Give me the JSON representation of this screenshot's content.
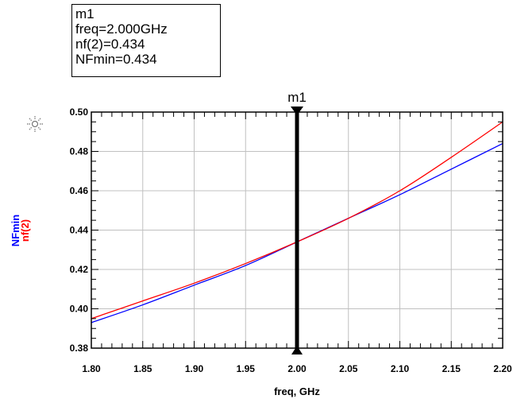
{
  "marker_readout": {
    "name": "m1",
    "freq_line": "freq=2.000GHz",
    "nf_line": "nf(2)=0.434",
    "nfmin_line": "NFmin=0.434"
  },
  "chart_data": {
    "type": "line",
    "xlabel": "freq, GHz",
    "ylabels": [
      {
        "text": "NFmin",
        "color": "#0000ff"
      },
      {
        "text": "nf(2)",
        "color": "#ff0000"
      }
    ],
    "xlim": [
      1.8,
      2.2
    ],
    "ylim": [
      0.38,
      0.5
    ],
    "x_ticks": [
      "1.80",
      "1.85",
      "1.90",
      "1.95",
      "2.00",
      "2.05",
      "2.10",
      "2.15",
      "2.20"
    ],
    "y_ticks": [
      "0.38",
      "0.40",
      "0.42",
      "0.44",
      "0.46",
      "0.48",
      "0.50"
    ],
    "grid": true,
    "x": [
      1.8,
      1.85,
      1.9,
      1.95,
      2.0,
      2.05,
      2.1,
      2.15,
      2.2
    ],
    "series": [
      {
        "name": "NFmin",
        "color": "#0000ff",
        "values": [
          0.393,
          0.402,
          0.412,
          0.422,
          0.434,
          0.446,
          0.458,
          0.471,
          0.484
        ]
      },
      {
        "name": "nf(2)",
        "color": "#ff0000",
        "values": [
          0.395,
          0.404,
          0.413,
          0.423,
          0.434,
          0.446,
          0.46,
          0.477,
          0.495
        ]
      }
    ],
    "marker": {
      "name": "m1",
      "x": 2.0,
      "y": 0.434
    }
  }
}
